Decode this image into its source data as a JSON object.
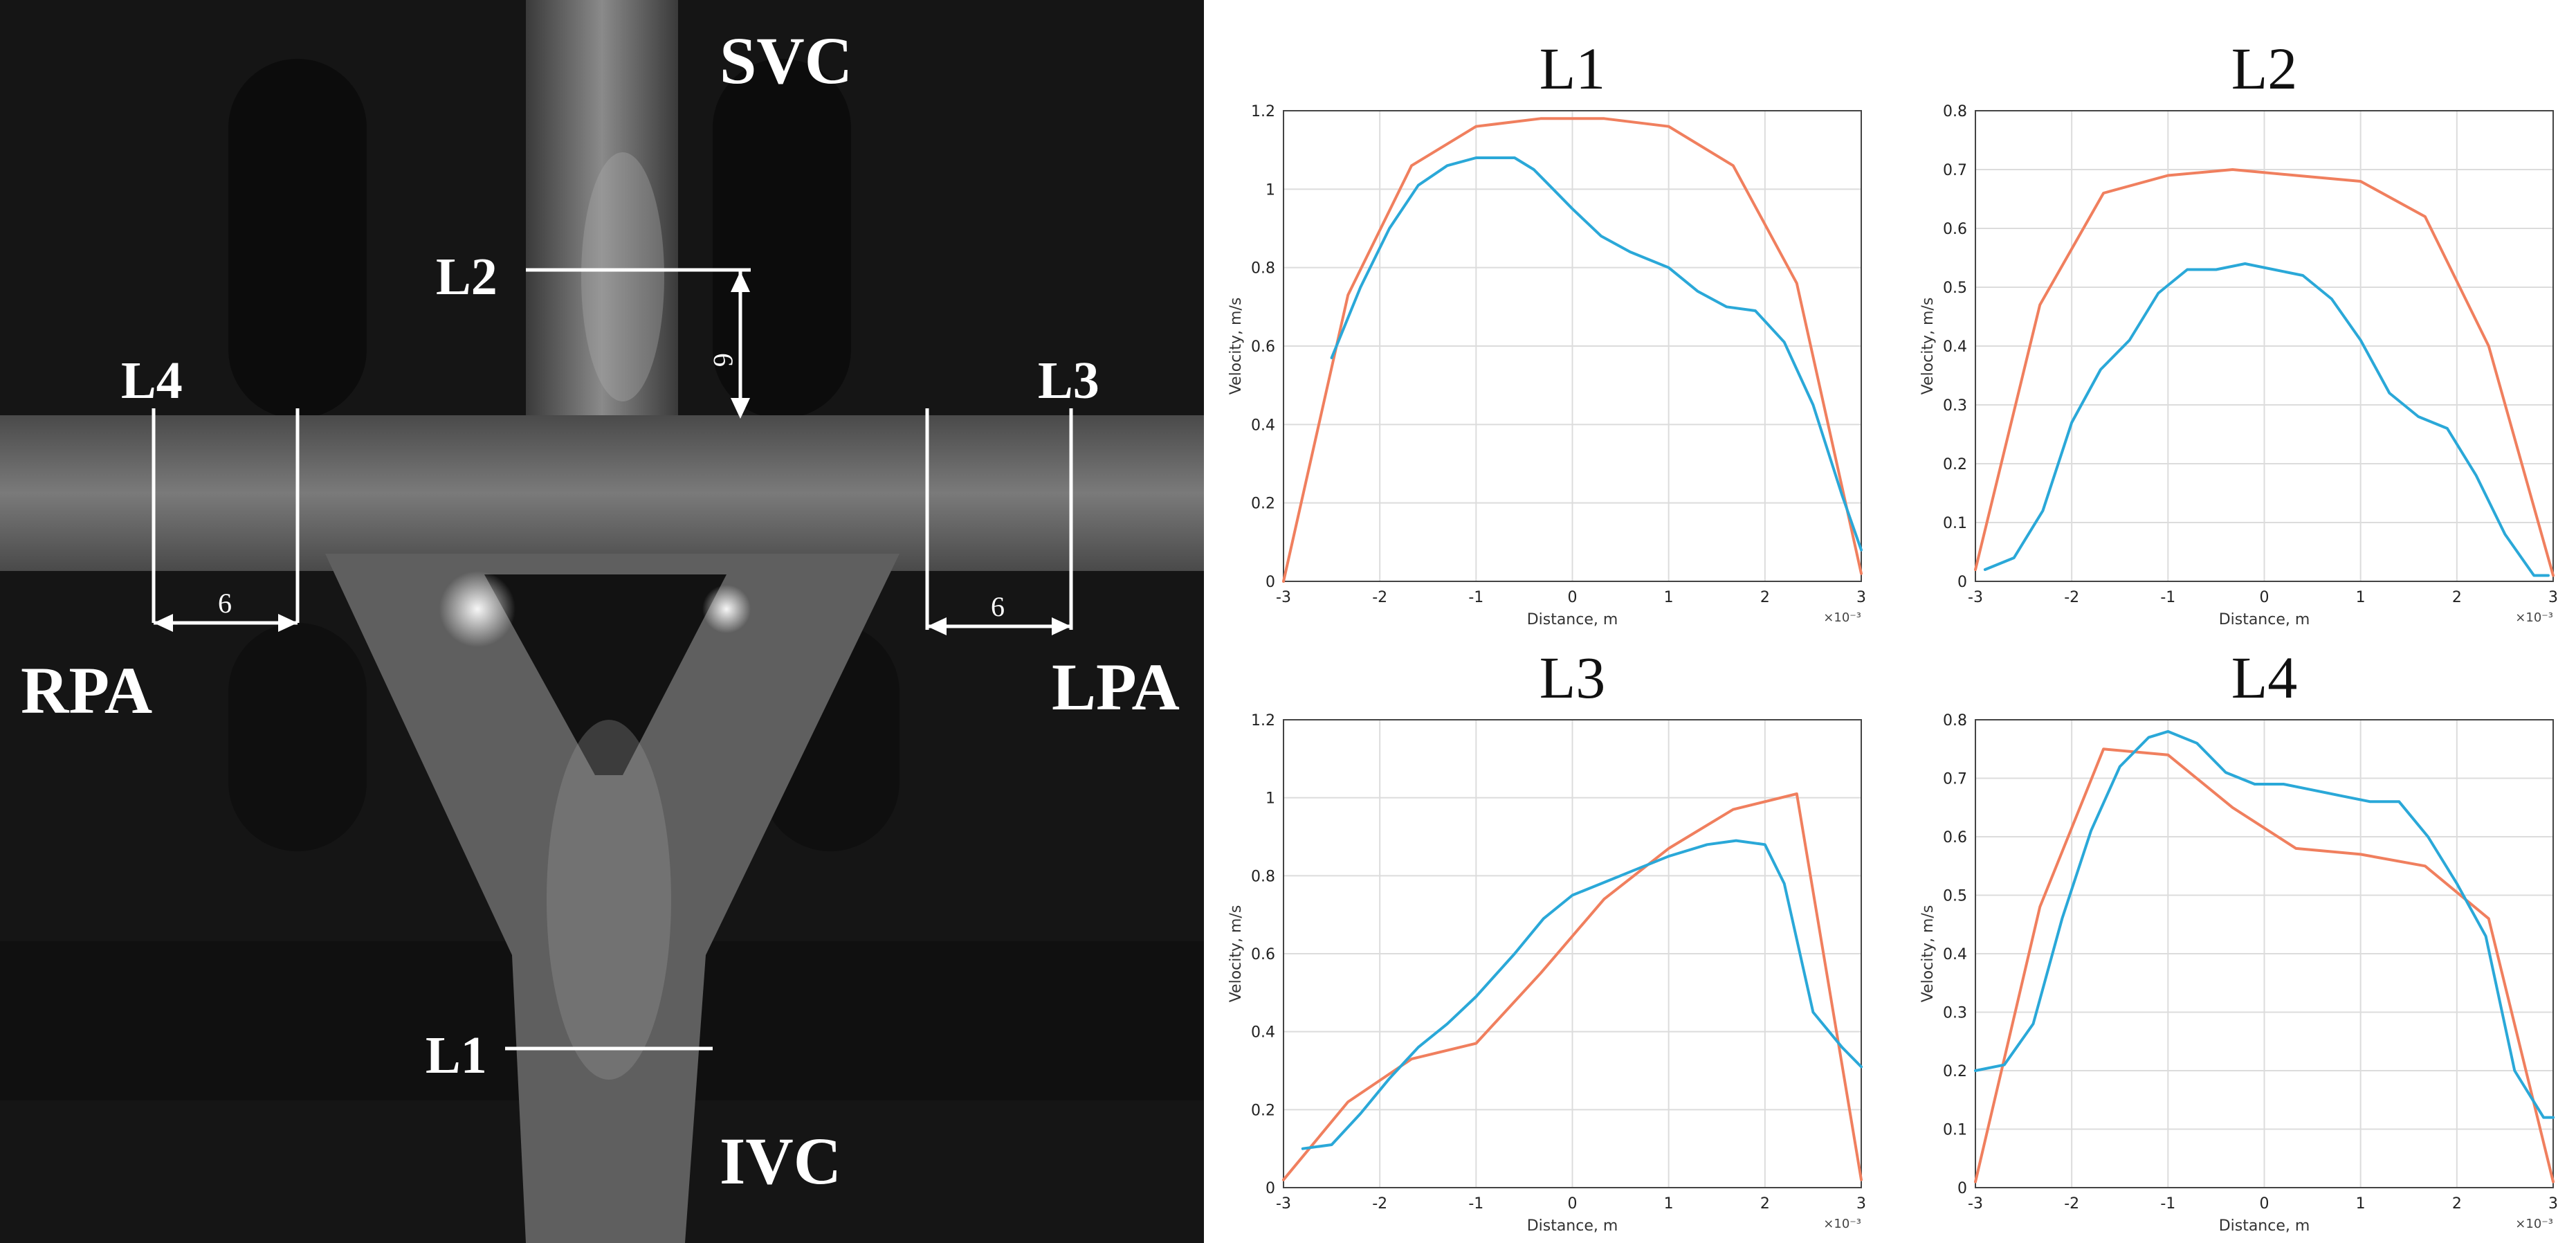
{
  "figure": {
    "labels": {
      "svc": "SVC",
      "ivc": "IVC",
      "rpa": "RPA",
      "lpa": "LPA",
      "l1": "L1",
      "l2": "L2",
      "l3": "L3",
      "l4": "L4",
      "dim_l2": "6",
      "dim_l3": "6",
      "dim_l4": "6"
    }
  },
  "colors": {
    "series_a": "#f07f5e",
    "series_b": "#2aa8d8",
    "photo_bg": "#141414",
    "vessel": "#6a6a6a"
  },
  "chart_data": [
    {
      "type": "line",
      "title": "L1",
      "xlabel": "Distance, m",
      "ylabel": "Velocity, m/s",
      "x_multiplier": "×10⁻³",
      "xlim": [
        -3,
        3
      ],
      "ylim": [
        0,
        1.2
      ],
      "xticks": [
        -3,
        -2,
        -1,
        0,
        1,
        2,
        3
      ],
      "yticks": [
        0,
        0.2,
        0.4,
        0.6,
        0.8,
        1,
        1.2
      ],
      "series": [
        {
          "name": "orange",
          "x": [
            -3,
            -2.33,
            -1.67,
            -1,
            -0.33,
            0.33,
            1,
            1.67,
            2.33,
            3
          ],
          "y": [
            0,
            0.73,
            1.06,
            1.16,
            1.18,
            1.18,
            1.16,
            1.06,
            0.76,
            0.02
          ]
        },
        {
          "name": "blue",
          "x": [
            -2.5,
            -2.2,
            -1.9,
            -1.6,
            -1.3,
            -1.0,
            -0.6,
            -0.4,
            -0.2,
            0,
            0.3,
            0.6,
            1.0,
            1.3,
            1.6,
            1.9,
            2.2,
            2.5,
            2.8,
            3
          ],
          "y": [
            0.57,
            0.75,
            0.9,
            1.01,
            1.06,
            1.08,
            1.08,
            1.05,
            1.0,
            0.95,
            0.88,
            0.84,
            0.8,
            0.74,
            0.7,
            0.69,
            0.61,
            0.45,
            0.22,
            0.08
          ]
        }
      ]
    },
    {
      "type": "line",
      "title": "L2",
      "xlabel": "Distance, m",
      "ylabel": "Velocity, m/s",
      "x_multiplier": "×10⁻³",
      "xlim": [
        -3,
        3
      ],
      "ylim": [
        0,
        0.8
      ],
      "xticks": [
        -3,
        -2,
        -1,
        0,
        1,
        2,
        3
      ],
      "yticks": [
        0,
        0.1,
        0.2,
        0.3,
        0.4,
        0.5,
        0.6,
        0.7,
        0.8
      ],
      "series": [
        {
          "name": "orange",
          "x": [
            -3,
            -2.33,
            -1.67,
            -1,
            -0.33,
            0.33,
            1,
            1.67,
            2.33,
            3
          ],
          "y": [
            0.02,
            0.47,
            0.66,
            0.69,
            0.7,
            0.69,
            0.68,
            0.62,
            0.4,
            0.01
          ]
        },
        {
          "name": "blue",
          "x": [
            -2.9,
            -2.6,
            -2.3,
            -2.0,
            -1.7,
            -1.4,
            -1.1,
            -0.8,
            -0.5,
            -0.2,
            0.1,
            0.4,
            0.7,
            1.0,
            1.3,
            1.6,
            1.9,
            2.2,
            2.5,
            2.8,
            2.95
          ],
          "y": [
            0.02,
            0.04,
            0.12,
            0.27,
            0.36,
            0.41,
            0.49,
            0.53,
            0.53,
            0.54,
            0.53,
            0.52,
            0.48,
            0.41,
            0.32,
            0.28,
            0.26,
            0.18,
            0.08,
            0.01,
            0.01
          ]
        }
      ]
    },
    {
      "type": "line",
      "title": "L3",
      "xlabel": "Distance, m",
      "ylabel": "Velocity, m/s",
      "x_multiplier": "×10⁻³",
      "xlim": [
        -3,
        3
      ],
      "ylim": [
        0,
        1.2
      ],
      "xticks": [
        -3,
        -2,
        -1,
        0,
        1,
        2,
        3
      ],
      "yticks": [
        0,
        0.2,
        0.4,
        0.6,
        0.8,
        1,
        1.2
      ],
      "series": [
        {
          "name": "orange",
          "x": [
            -3,
            -2.33,
            -1.67,
            -1,
            -0.33,
            0.33,
            1,
            1.67,
            2.33,
            3
          ],
          "y": [
            0.02,
            0.22,
            0.33,
            0.37,
            0.55,
            0.74,
            0.87,
            0.97,
            1.01,
            0.02
          ]
        },
        {
          "name": "blue",
          "x": [
            -2.8,
            -2.5,
            -2.2,
            -1.9,
            -1.6,
            -1.3,
            -1.0,
            -0.6,
            -0.3,
            0,
            0.3,
            0.6,
            1.0,
            1.4,
            1.7,
            2.0,
            2.2,
            2.5,
            2.8,
            3
          ],
          "y": [
            0.1,
            0.11,
            0.19,
            0.28,
            0.36,
            0.42,
            0.49,
            0.6,
            0.69,
            0.75,
            0.78,
            0.81,
            0.85,
            0.88,
            0.89,
            0.88,
            0.78,
            0.45,
            0.36,
            0.31
          ]
        }
      ]
    },
    {
      "type": "line",
      "title": "L4",
      "xlabel": "Distance, m",
      "ylabel": "Velocity, m/s",
      "x_multiplier": "×10⁻³",
      "xlim": [
        -3,
        3
      ],
      "ylim": [
        0,
        0.8
      ],
      "xticks": [
        -3,
        -2,
        -1,
        0,
        1,
        2,
        3
      ],
      "yticks": [
        0,
        0.1,
        0.2,
        0.3,
        0.4,
        0.5,
        0.6,
        0.7,
        0.8
      ],
      "series": [
        {
          "name": "orange",
          "x": [
            -3,
            -2.33,
            -1.67,
            -1,
            -0.33,
            0.33,
            1,
            1.67,
            2.33,
            3
          ],
          "y": [
            0.01,
            0.48,
            0.75,
            0.74,
            0.65,
            0.58,
            0.57,
            0.55,
            0.46,
            0.01
          ]
        },
        {
          "name": "blue",
          "x": [
            -3,
            -2.7,
            -2.4,
            -2.1,
            -1.8,
            -1.5,
            -1.2,
            -1.0,
            -0.7,
            -0.4,
            -0.1,
            0.2,
            0.5,
            0.8,
            1.1,
            1.4,
            1.7,
            2.0,
            2.3,
            2.6,
            2.9,
            3
          ],
          "y": [
            0.2,
            0.21,
            0.28,
            0.46,
            0.61,
            0.72,
            0.77,
            0.78,
            0.76,
            0.71,
            0.69,
            0.69,
            0.68,
            0.67,
            0.66,
            0.66,
            0.6,
            0.52,
            0.43,
            0.2,
            0.12,
            0.12
          ]
        }
      ]
    }
  ]
}
